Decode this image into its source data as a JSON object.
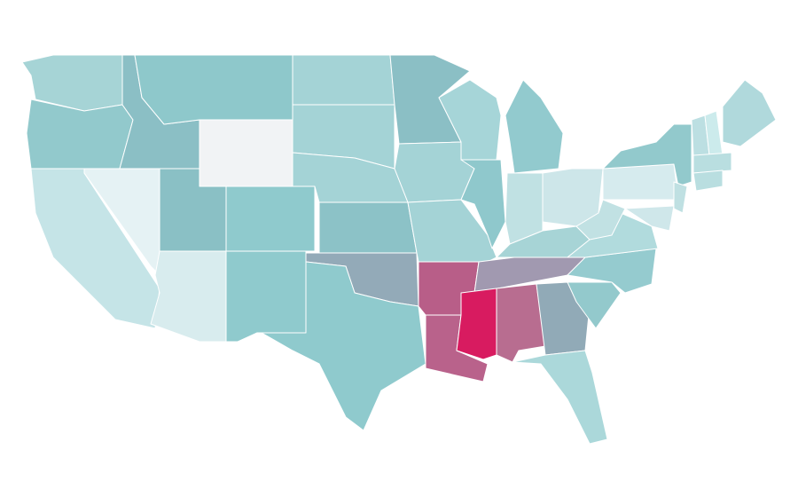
{
  "map": {
    "fills": [
      "#a6d4d6",
      "#92c9cc",
      "#c5e4e7",
      "#e5f2f4",
      "#8bbfc5",
      "#8ec8cb",
      "#f1f3f5",
      "#8ac0c5",
      "#d8ecee",
      "#8fcacd",
      "#8fcacd",
      "#a4d3d6",
      "#a4d3d6",
      "#a4d3d6",
      "#8cc2c7",
      "#93aab8",
      "#8fcacd",
      "#8bbfc5",
      "#a4d3d6",
      "#a4d3d6",
      "#b85e88",
      "#b9628b",
      "#a6d5d8",
      "#8fc8cc",
      "#92cace",
      "#c0e1e3",
      "#cde6e9",
      "#a7d4d6",
      "#a199b0",
      "#d81b60",
      "#b86d90",
      "#91aab7",
      "#abd8da",
      "#93c9cc",
      "#95cbcf",
      "#b1dbdd",
      "#c1e1e3",
      "#d6ebee",
      "#92c9cc",
      "#bfe0e2",
      "#cfe7ea",
      "#bcdfe2",
      "#ccebec",
      "#b0d9dc",
      "#b9dee0",
      "#b9dee0"
    ]
  }
}
